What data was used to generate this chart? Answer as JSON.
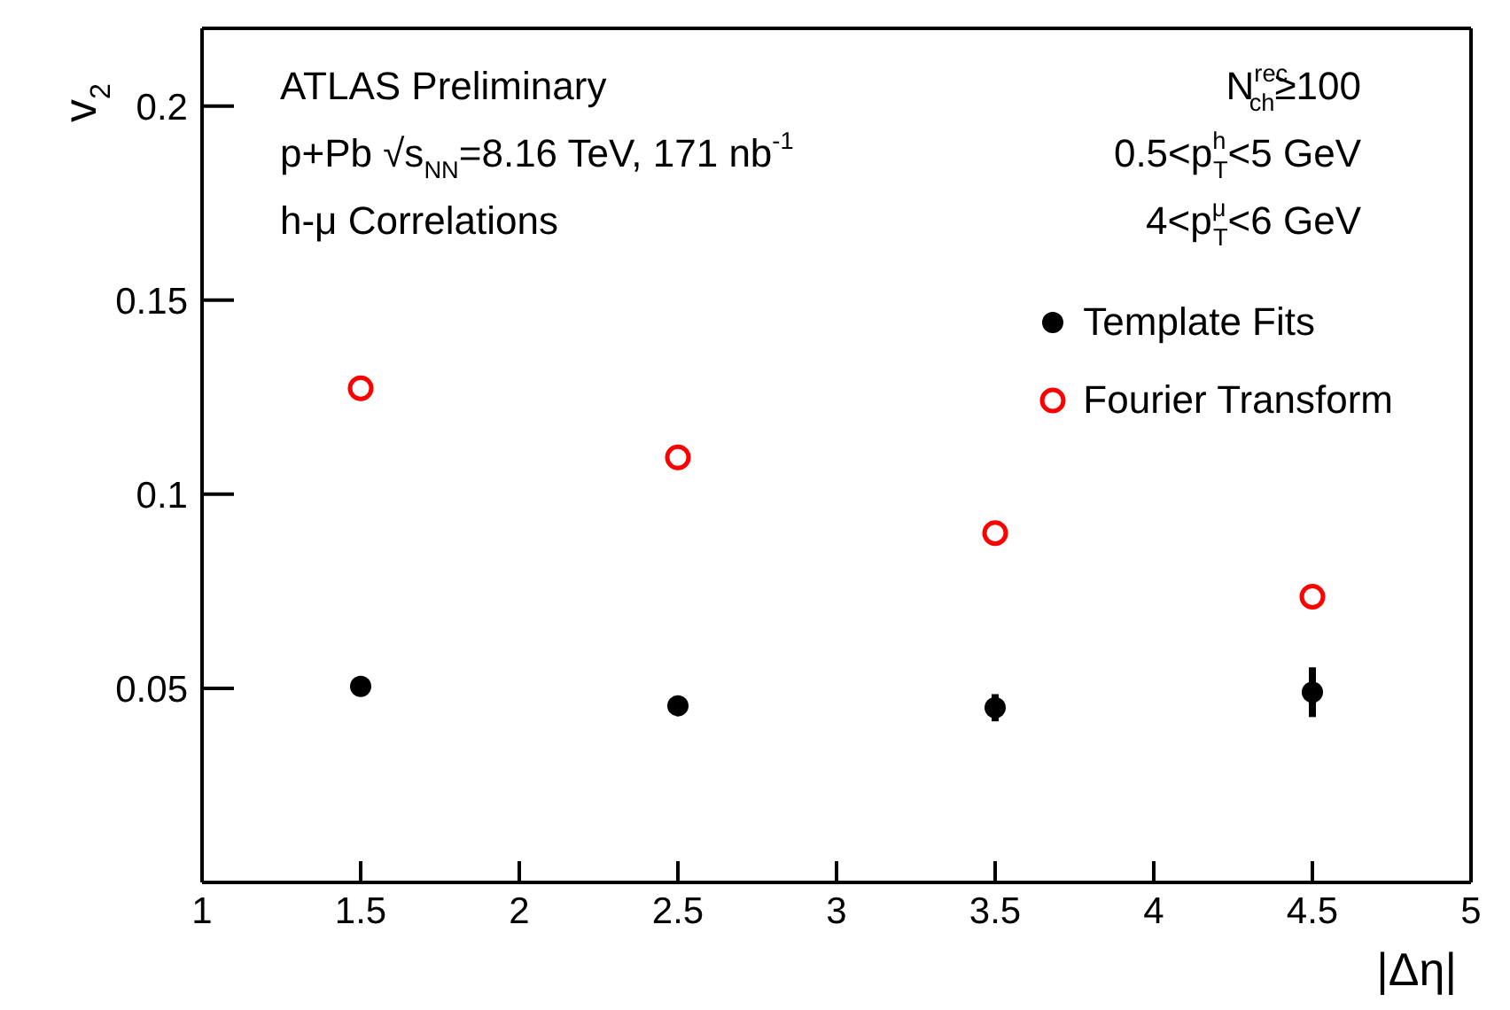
{
  "chart_data": {
    "type": "scatter",
    "xlabel": "|Δη|",
    "ylabel": "v$_{2}$",
    "annotations": [
      "ATLAS Preliminary",
      "p+Pb √s$_{NN}$=8.16 TeV, 171 nb$^{-1}$",
      "h-μ Correlations",
      "N$^{rec}$$_{ch}$≥100",
      "0.5<p$^{h}$$_{T}$<5 GeV",
      "4<p$^{μ}$$_{T}$<6 GeV"
    ],
    "x": [
      1.5,
      2.5,
      3.5,
      4.5
    ],
    "series": [
      {
        "name": "Template Fits",
        "color": "#000000",
        "values": [
          0.0505,
          0.0455,
          0.045,
          0.049
        ],
        "errors": [
          null,
          0.002,
          0.0035,
          0.0064
        ]
      },
      {
        "name": "Fourier Transform",
        "color": "#ff0000",
        "values": [
          0.1273,
          0.1095,
          0.09,
          0.0736
        ]
      }
    ],
    "xlim": [
      1,
      5
    ],
    "xticks": [
      1,
      1.5,
      2,
      2.5,
      3,
      3.5,
      4,
      4.5,
      5
    ],
    "ylim": [
      0,
      0.22
    ],
    "yticks": [
      0.05,
      0.1,
      0.15,
      0.2
    ],
    "legend": "top right",
    "marker": "circle"
  }
}
